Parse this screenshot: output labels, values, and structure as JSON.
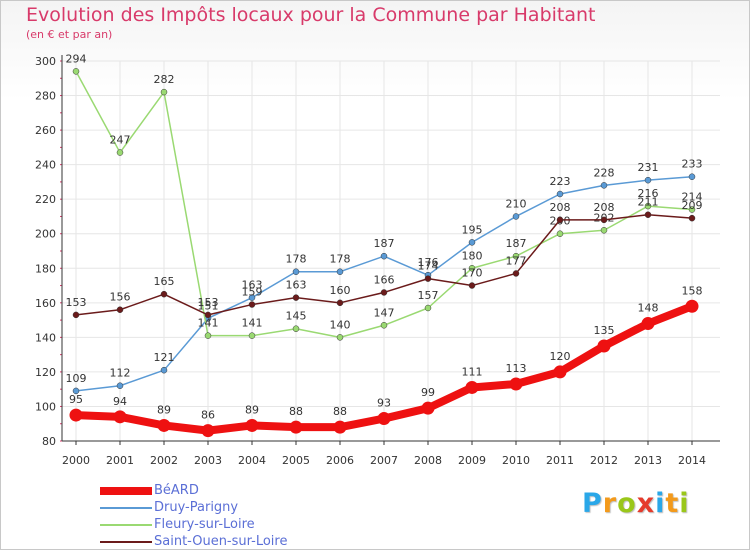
{
  "header": {
    "title": "Evolution des Impôts locaux pour la Commune par Habitant",
    "subtitle": "(en € et par an)"
  },
  "colors": {
    "title": "#d83a6a",
    "axis": "#333333",
    "grid": "#e6e6e6",
    "legend_text": "#5b6fd6",
    "beard": "#ee1111",
    "druy": "#5a9ad5",
    "fleury": "#9ad972",
    "saintouen": "#6b1b1b"
  },
  "logo": {
    "text": "Proxiti",
    "letters": [
      "P",
      "r",
      "o",
      "x",
      "i",
      "t",
      "i"
    ],
    "letter_colors": [
      "#2aa7e8",
      "#f39a1b",
      "#9ac71a",
      "#e53b2c",
      "#2aa7e8",
      "#f39a1b",
      "#9ac71a"
    ]
  },
  "chart_data": {
    "type": "line",
    "title": "Evolution des Impôts locaux pour la Commune par Habitant",
    "subtitle": "(en € et par an)",
    "xlabel": "",
    "ylabel": "",
    "ylim": [
      80,
      300
    ],
    "yticks": [
      80,
      100,
      120,
      140,
      160,
      180,
      200,
      220,
      240,
      260,
      280,
      300
    ],
    "grid": true,
    "legend_position": "bottom-left",
    "categories": [
      "2000",
      "2001",
      "2002",
      "2003",
      "2004",
      "2005",
      "2006",
      "2007",
      "2008",
      "2009",
      "2010",
      "2011",
      "2012",
      "2013",
      "2014"
    ],
    "series": [
      {
        "name": "BéARD",
        "key": "beard",
        "color": "#ee1111",
        "emphasis": true,
        "values": [
          95,
          94,
          89,
          86,
          89,
          88,
          88,
          93,
          99,
          111,
          113,
          120,
          135,
          148,
          158
        ]
      },
      {
        "name": "Druy-Parigny",
        "key": "druy",
        "color": "#5a9ad5",
        "values": [
          109,
          112,
          121,
          151,
          163,
          178,
          178,
          187,
          176,
          195,
          210,
          223,
          228,
          231,
          233
        ]
      },
      {
        "name": "Fleury-sur-Loire",
        "key": "fleury",
        "color": "#9ad972",
        "values": [
          294,
          247,
          282,
          141,
          141,
          145,
          140,
          147,
          157,
          180,
          187,
          200,
          202,
          216,
          214
        ]
      },
      {
        "name": "Saint-Ouen-sur-Loire",
        "key": "saintouen",
        "color": "#6b1b1b",
        "values": [
          153,
          156,
          165,
          153,
          159,
          163,
          160,
          166,
          174,
          170,
          177,
          208,
          208,
          211,
          209
        ]
      }
    ]
  }
}
